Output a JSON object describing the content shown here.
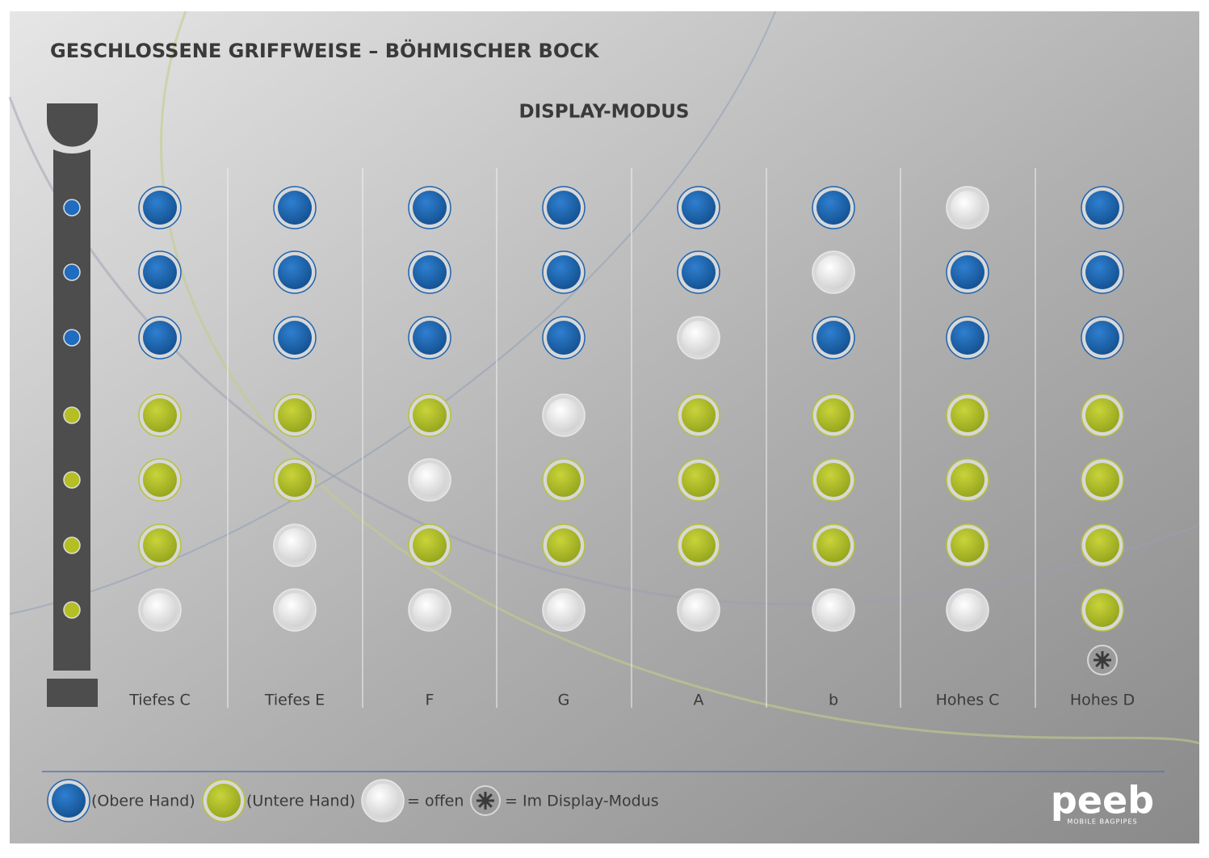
{
  "title": "GESCHLOSSENE GRIFFWEISE – BÖHMISCHER BOCK",
  "subtitle": "DISPLAY-MODUS",
  "notes": [
    {
      "label": "Tiefes C",
      "holes": [
        true,
        true,
        true,
        true,
        true,
        true,
        false
      ],
      "display": false
    },
    {
      "label": "Tiefes E",
      "holes": [
        true,
        true,
        true,
        true,
        true,
        false,
        false
      ],
      "display": false
    },
    {
      "label": "F",
      "holes": [
        true,
        true,
        true,
        true,
        false,
        true,
        false
      ],
      "display": false
    },
    {
      "label": "G",
      "holes": [
        true,
        true,
        true,
        false,
        true,
        true,
        false
      ],
      "display": false
    },
    {
      "label": "A",
      "holes": [
        true,
        true,
        false,
        true,
        true,
        true,
        false
      ],
      "display": false
    },
    {
      "label": "b",
      "holes": [
        true,
        false,
        true,
        true,
        true,
        true,
        false
      ],
      "display": false
    },
    {
      "label": "Hohes C",
      "holes": [
        false,
        true,
        true,
        true,
        true,
        true,
        false
      ],
      "display": false
    },
    {
      "label": "Hohes D",
      "holes": [
        true,
        true,
        true,
        true,
        true,
        true,
        true
      ],
      "display": true
    }
  ],
  "legend": {
    "upper": "(Obere Hand)",
    "lower": "(Untere Hand)",
    "open": "= offen",
    "display": "= Im Display-Modus"
  },
  "logo": {
    "name": "peeb",
    "tagline": "MOBILE BAGPIPES"
  }
}
